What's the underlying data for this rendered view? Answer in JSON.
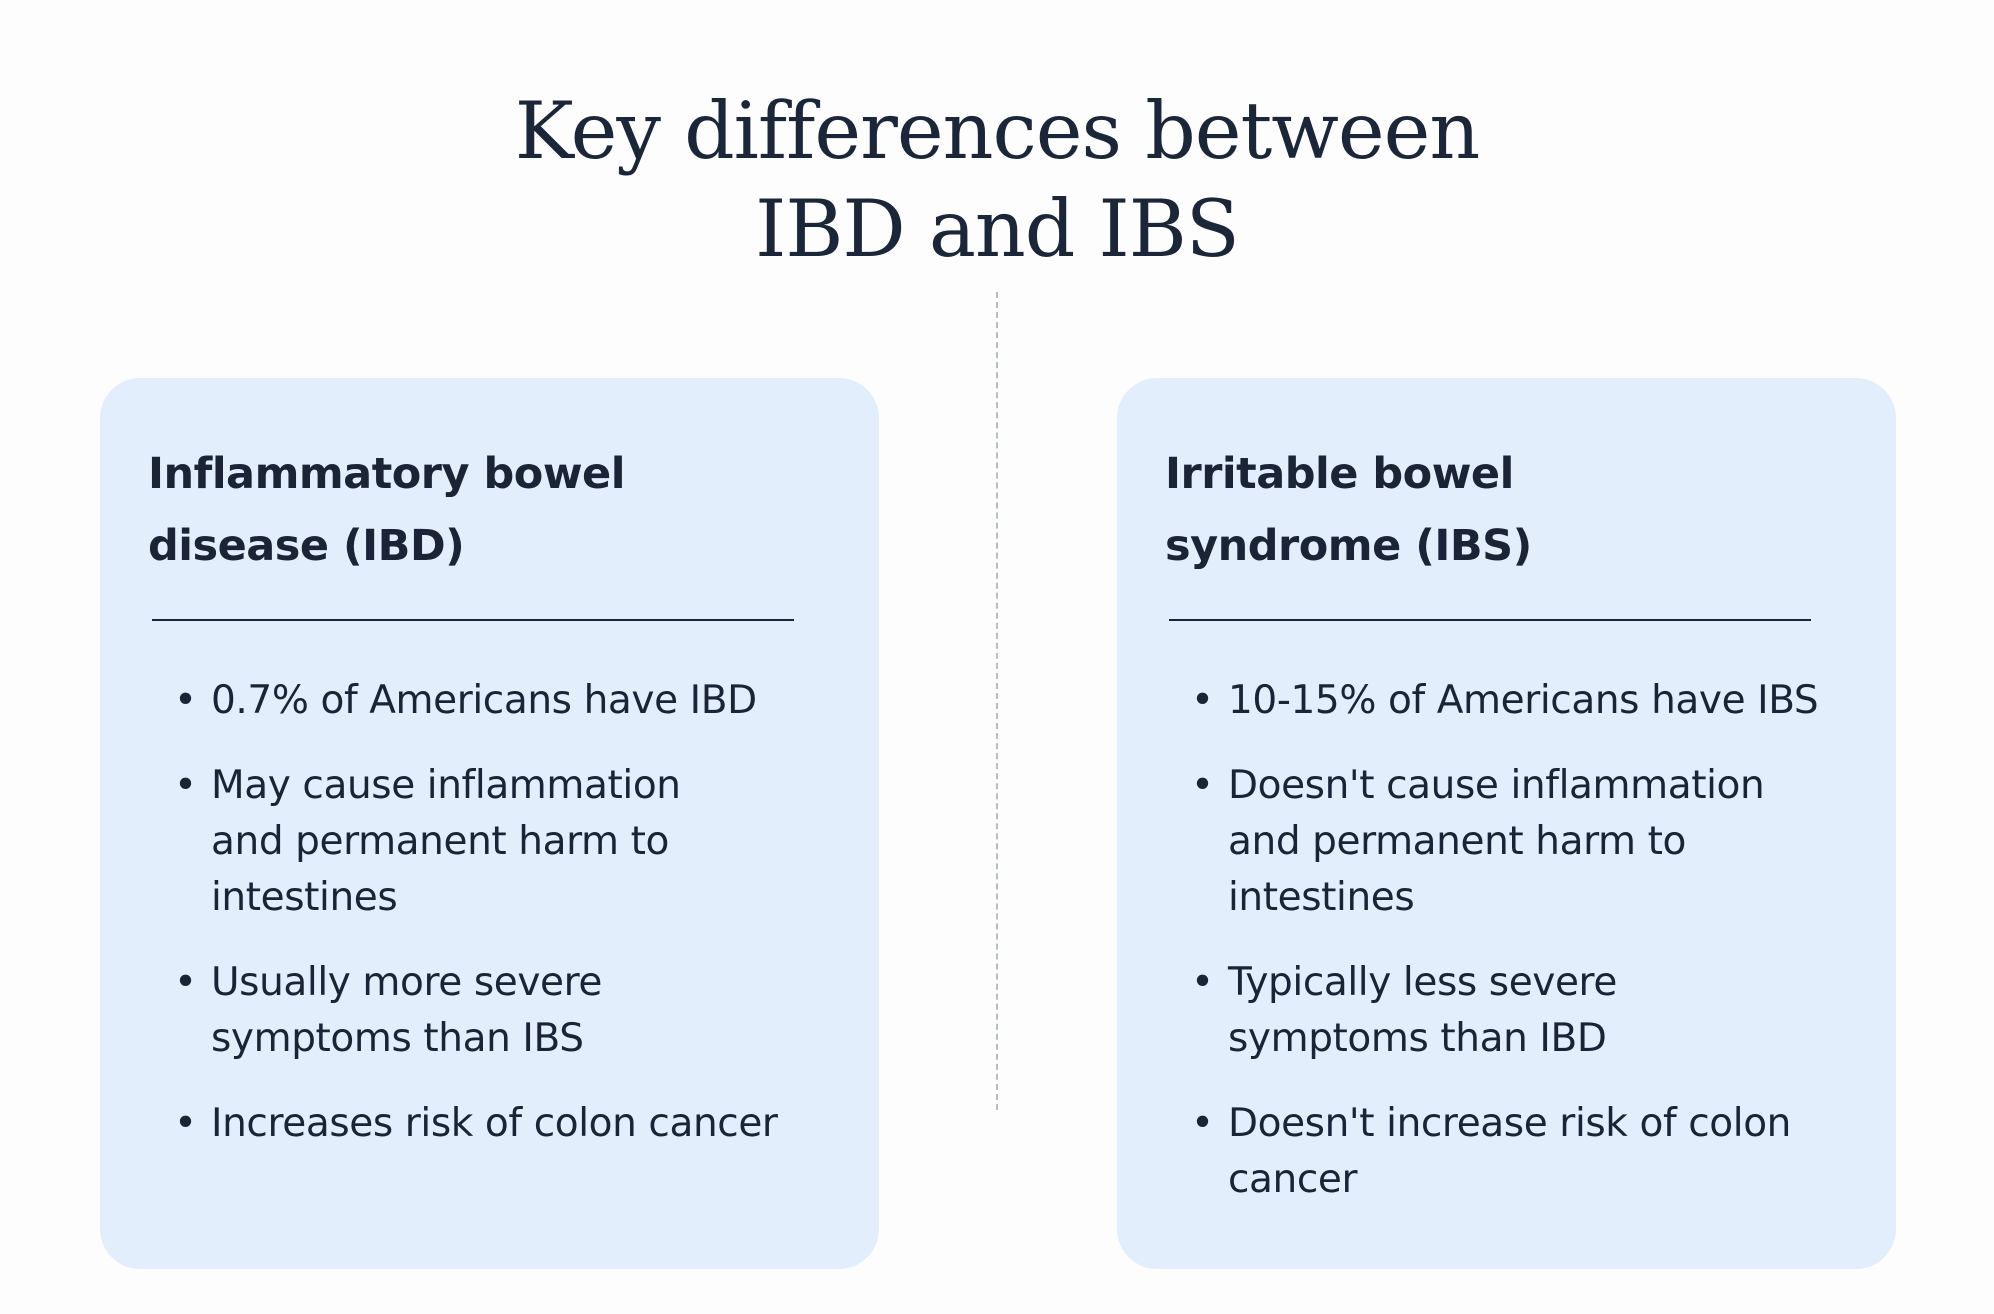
{
  "title": {
    "line1": "Key differences between",
    "line2": "IBD and IBS"
  },
  "cards": [
    {
      "title_lines": [
        "Inflammatory bowel",
        "disease (IBD)"
      ],
      "bullets": [
        [
          "0.7% of Americans have IBD"
        ],
        [
          "May cause inflammation",
          "and permanent harm to",
          "intestines"
        ],
        [
          "Usually more severe",
          "symptoms than IBS"
        ],
        [
          "Increases risk of colon cancer"
        ]
      ]
    },
    {
      "title_lines": [
        "Irritable bowel",
        "syndrome (IBS)"
      ],
      "bullets": [
        [
          "10-15% of Americans have IBS"
        ],
        [
          "Doesn't cause inflammation",
          "and permanent harm to",
          "intestines"
        ],
        [
          "Typically less severe",
          "symptoms than IBD"
        ],
        [
          "Doesn't increase risk of colon",
          "cancer"
        ]
      ]
    }
  ],
  "bullet_glyph": "•",
  "colors": {
    "background": "#fdfdfd",
    "card": "#e2eefc",
    "text": "#1a2436",
    "divider": "#b8bcc4"
  }
}
